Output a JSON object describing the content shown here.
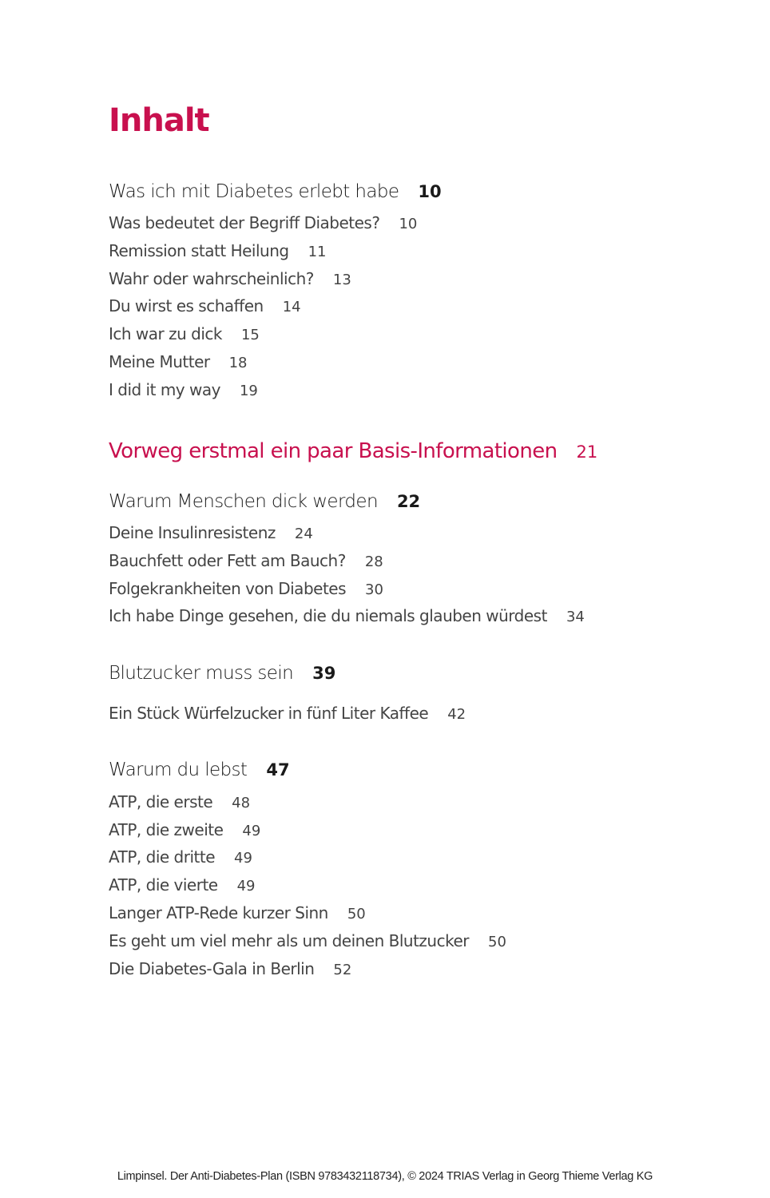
{
  "title": "Inhalt",
  "colors": {
    "accent": "#c8104e",
    "text": "#1a1a1a",
    "subtext": "#444444"
  },
  "entries": [
    {
      "level": "chapter",
      "label": "Was ich mit Diabetes erlebt habe",
      "page": "10"
    },
    {
      "level": "sub",
      "label": "Was bedeutet der Begriff Diabetes?",
      "page": "10"
    },
    {
      "level": "sub",
      "label": "Remission statt Heilung",
      "page": "11"
    },
    {
      "level": "sub",
      "label": "Wahr oder wahrscheinlich?",
      "page": "13"
    },
    {
      "level": "sub",
      "label": "Du wirst es schaffen",
      "page": "14"
    },
    {
      "level": "sub",
      "label": "Ich war zu dick",
      "page": "15"
    },
    {
      "level": "sub",
      "label": "Meine Mutter",
      "page": "18"
    },
    {
      "level": "sub",
      "label": "I did it my way",
      "page": "19"
    },
    {
      "level": "part",
      "label": "Vorweg erstmal ein paar Basis-Informationen",
      "page": "21"
    },
    {
      "level": "chapter",
      "label": "Warum Menschen dick werden",
      "page": "22"
    },
    {
      "level": "sub",
      "label": "Deine Insulinresistenz",
      "page": "24"
    },
    {
      "level": "sub",
      "label": "Bauchfett oder Fett am Bauch?",
      "page": "28"
    },
    {
      "level": "sub",
      "label": "Folgekrankheiten von Diabetes",
      "page": "30"
    },
    {
      "level": "sub",
      "label": "Ich habe Dinge gesehen, die du niemals glauben würdest",
      "page": "34"
    },
    {
      "level": "chapter",
      "label": "Blutzucker muss sein",
      "page": "39"
    },
    {
      "level": "sub",
      "label": "Ein Stück Würfelzucker in fünf Liter Kaffee",
      "page": "42"
    },
    {
      "level": "chapter",
      "label": "Warum du lebst",
      "page": "47"
    },
    {
      "level": "sub",
      "label": "ATP, die erste",
      "page": "48"
    },
    {
      "level": "sub",
      "label": "ATP, die zweite",
      "page": "49"
    },
    {
      "level": "sub",
      "label": "ATP, die dritte",
      "page": "49"
    },
    {
      "level": "sub",
      "label": "ATP, die vierte",
      "page": "49"
    },
    {
      "level": "sub",
      "label": "Langer ATP-Rede kurzer Sinn",
      "page": "50"
    },
    {
      "level": "sub",
      "label": "Es geht um viel mehr als um deinen Blutzucker",
      "page": "50"
    },
    {
      "level": "sub",
      "label": "Die Diabetes-Gala in Berlin",
      "page": "52"
    }
  ],
  "footer": "Limpinsel. Der Anti-Diabetes-Plan (ISBN 9783432118734), © 2024 TRIAS Verlag in Georg Thieme Verlag KG"
}
